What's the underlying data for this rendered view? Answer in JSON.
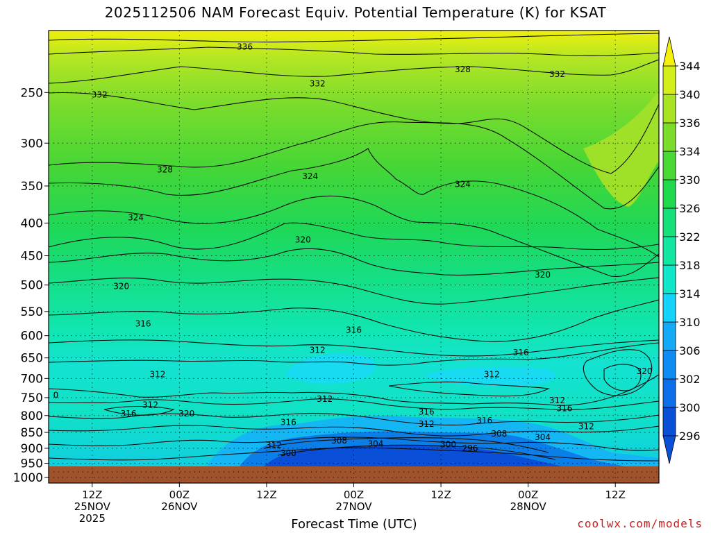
{
  "chart_data": {
    "type": "heatmap",
    "title": "2025112506 NAM Forecast Equiv. Potential Temperature (K) for KSAT",
    "xlabel": "Forecast Time (UTC)",
    "ylabel": "",
    "credit": "coolwx.com/models",
    "units": "K",
    "y_axis": {
      "type": "pressure",
      "ticks": [
        250,
        300,
        350,
        400,
        450,
        500,
        550,
        600,
        650,
        700,
        750,
        800,
        850,
        900,
        950,
        1000
      ],
      "tick_labels": [
        "250",
        "300",
        "350",
        "400",
        "450",
        "500",
        "550",
        "600",
        "650",
        "700",
        "750",
        "800",
        "850",
        "900",
        "950",
        "1000"
      ],
      "range": [
        200,
        1020
      ]
    },
    "x_axis": {
      "range_hours": [
        0,
        84
      ],
      "ticks": [
        {
          "hour": 6,
          "lines": [
            "12Z",
            "25NOV",
            "2025"
          ]
        },
        {
          "hour": 18,
          "lines": [
            "00Z",
            "26NOV"
          ]
        },
        {
          "hour": 30,
          "lines": [
            "12Z"
          ]
        },
        {
          "hour": 42,
          "lines": [
            "00Z",
            "27NOV"
          ]
        },
        {
          "hour": 54,
          "lines": [
            "12Z"
          ]
        },
        {
          "hour": 66,
          "lines": [
            "00Z",
            "28NOV"
          ]
        },
        {
          "hour": 78,
          "lines": [
            "12Z"
          ]
        }
      ]
    },
    "colorbar": {
      "levels": [
        "296",
        "300",
        "302",
        "306",
        "310",
        "314",
        "318",
        "322",
        "326",
        "330",
        "334",
        "336",
        "340",
        "344"
      ],
      "colors": [
        "#0a4fd8",
        "#0c6ee8",
        "#0f8cf4",
        "#14aaf8",
        "#15d2fa",
        "#10e6c8",
        "#12e6a0",
        "#15e07a",
        "#1fd84c",
        "#4ad834",
        "#7cdc2c",
        "#a8e424",
        "#d4ee1c",
        "#f4f00c"
      ]
    },
    "contour_labels": [
      {
        "value": "336",
        "hour": 27,
        "p": 212
      },
      {
        "value": "332",
        "hour": 7,
        "p": 252
      },
      {
        "value": "332",
        "hour": 37,
        "p": 242
      },
      {
        "value": "328",
        "hour": 57,
        "p": 230
      },
      {
        "value": "332",
        "hour": 70,
        "p": 234
      },
      {
        "value": "328",
        "hour": 16,
        "p": 330
      },
      {
        "value": "324",
        "hour": 36,
        "p": 338
      },
      {
        "value": "324",
        "hour": 57,
        "p": 348
      },
      {
        "value": "324",
        "hour": 12,
        "p": 392
      },
      {
        "value": "320",
        "hour": 35,
        "p": 425
      },
      {
        "value": "320",
        "hour": 68,
        "p": 482
      },
      {
        "value": "320",
        "hour": 10,
        "p": 502
      },
      {
        "value": "316",
        "hour": 13,
        "p": 575
      },
      {
        "value": "316",
        "hour": 42,
        "p": 588
      },
      {
        "value": "316",
        "hour": 65,
        "p": 638
      },
      {
        "value": "312",
        "hour": 37,
        "p": 632
      },
      {
        "value": "312",
        "hour": 15,
        "p": 690
      },
      {
        "value": "312",
        "hour": 61,
        "p": 690
      },
      {
        "value": "320",
        "hour": 82,
        "p": 682
      },
      {
        "value": "0",
        "hour": 1,
        "p": 744
      },
      {
        "value": "312",
        "hour": 14,
        "p": 770
      },
      {
        "value": "312",
        "hour": 38,
        "p": 754
      },
      {
        "value": "312",
        "hour": 70,
        "p": 758
      },
      {
        "value": "316",
        "hour": 11,
        "p": 794
      },
      {
        "value": "320",
        "hour": 19,
        "p": 794
      },
      {
        "value": "316",
        "hour": 52,
        "p": 790
      },
      {
        "value": "316",
        "hour": 71,
        "p": 780
      },
      {
        "value": "316",
        "hour": 33,
        "p": 820
      },
      {
        "value": "312",
        "hour": 52,
        "p": 825
      },
      {
        "value": "316",
        "hour": 60,
        "p": 815
      },
      {
        "value": "312",
        "hour": 74,
        "p": 832
      },
      {
        "value": "308",
        "hour": 62,
        "p": 854
      },
      {
        "value": "304",
        "hour": 68,
        "p": 865
      },
      {
        "value": "308",
        "hour": 40,
        "p": 876
      },
      {
        "value": "304",
        "hour": 45,
        "p": 886
      },
      {
        "value": "300",
        "hour": 55,
        "p": 888
      },
      {
        "value": "312",
        "hour": 31,
        "p": 890
      },
      {
        "value": "296",
        "hour": 58,
        "p": 900
      },
      {
        "value": "300",
        "hour": 33,
        "p": 916
      }
    ]
  }
}
